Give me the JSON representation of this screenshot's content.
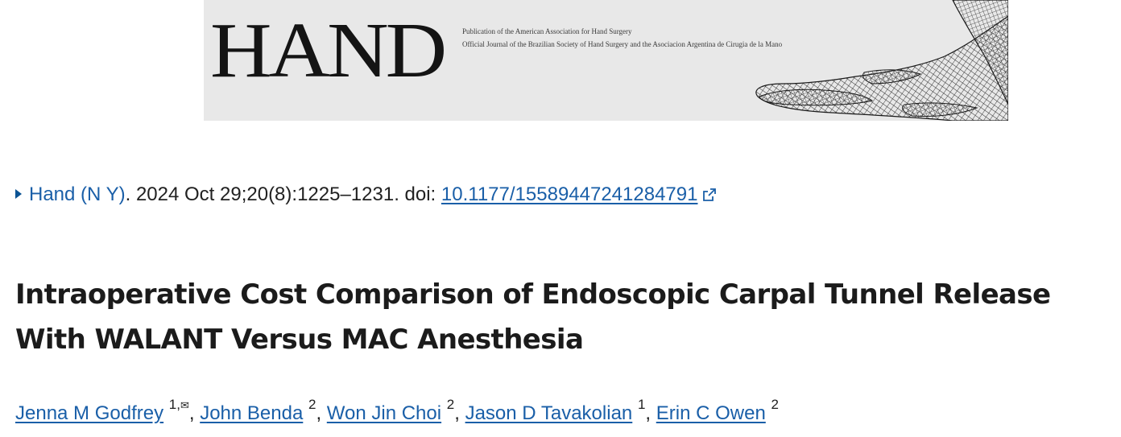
{
  "banner": {
    "logo_text": "HAND",
    "subtitle_line1": "Publication of the American Association for Hand Surgery",
    "subtitle_line2": "Official Journal of the Brazilian Society of Hand Surgery and the Asociacion Argentina de Cirugia de la Mano",
    "image_icon": "wireframe-hand-illustration"
  },
  "citation": {
    "expand_icon": "triangle-right-icon",
    "journal": "Hand (N Y)",
    "after_journal": ". 2024 Oct 29;20(8):1225–1231. doi: ",
    "doi": "10.1177/15589447241284791",
    "external_icon": "external-link-icon"
  },
  "article": {
    "title_line1": "Intraoperative Cost Comparison of Endoscopic Carpal Tunnel Release",
    "title_line2": "With WALANT Versus MAC Anesthesia"
  },
  "authors": [
    {
      "name": "Jenna M Godfrey",
      "aff": "1,"
    },
    {
      "name": "John Benda",
      "aff": "2"
    },
    {
      "name": "Won Jin Choi",
      "aff": "2"
    },
    {
      "name": "Jason D Tavakolian",
      "aff": "1"
    },
    {
      "name": "Erin C Owen",
      "aff": "2"
    }
  ],
  "authors_separator": ", ",
  "corresponding_icon": "envelope-icon",
  "colors": {
    "link": "#1a5fa8",
    "banner_bg": "#e8e8e8",
    "text": "#212121"
  }
}
